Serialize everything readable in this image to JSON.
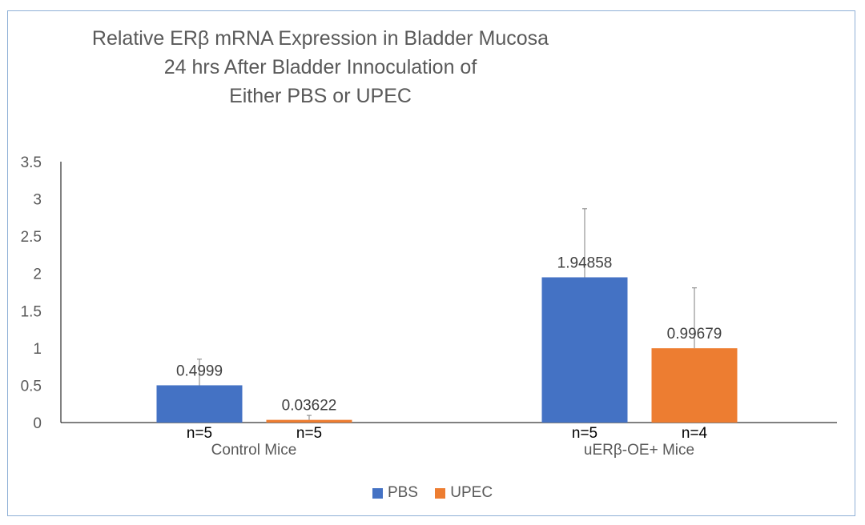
{
  "chart_data": {
    "type": "bar",
    "title_lines": [
      "Relative ERβ mRNA Expression in Bladder Mucosa",
      "24 hrs After Bladder Innoculation of",
      "Either PBS or UPEC"
    ],
    "categories": [
      "Control Mice",
      "uERβ-OE+ Mice"
    ],
    "series": [
      {
        "name": "PBS",
        "color": "#4472c4",
        "values": [
          0.4999,
          1.94858
        ],
        "error_upper": [
          0.35,
          0.92
        ],
        "data_labels": [
          "0.4999",
          "1.94858"
        ],
        "n_labels": [
          "n=5",
          "n=5"
        ]
      },
      {
        "name": "UPEC",
        "color": "#ed7d31",
        "values": [
          0.03622,
          0.99679
        ],
        "error_upper": [
          0.06,
          0.81
        ],
        "data_labels": [
          "0.03622",
          "0.99679"
        ],
        "n_labels": [
          "n=5",
          "n=4"
        ]
      }
    ],
    "yticks": [
      "0",
      "0.5",
      "1",
      "1.5",
      "2",
      "2.5",
      "3",
      "3.5"
    ],
    "ylim": [
      0,
      3.5
    ],
    "grid": false,
    "legend_position": "bottom"
  }
}
